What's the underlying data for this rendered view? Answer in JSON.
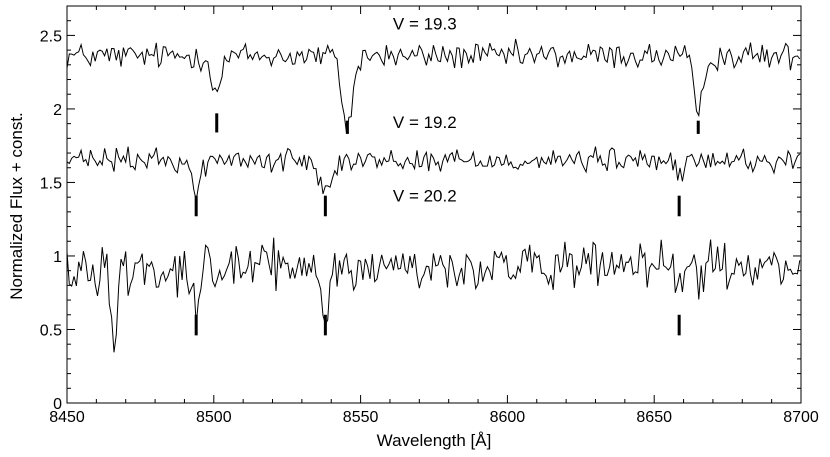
{
  "chart_data": {
    "type": "line",
    "title": "",
    "xlabel": "Wavelength [Å]",
    "ylabel": "Normalized Flux + const.",
    "xlim": [
      8450,
      8700
    ],
    "ylim": [
      0,
      2.7
    ],
    "xticks": [
      8450,
      8500,
      8550,
      8600,
      8650,
      8700
    ],
    "xtick_labels": [
      "8450",
      "8500",
      "8550",
      "8600",
      "8650",
      "8700"
    ],
    "yticks": [
      0,
      0.5,
      1,
      1.5,
      2,
      2.5
    ],
    "ytick_labels": [
      "0",
      "0.5",
      "1",
      "1.5",
      "2",
      "2.5"
    ],
    "grid": false,
    "legend": "none",
    "line_color": "#000000",
    "series": [
      {
        "label": "V = 19.3",
        "baseline": 2.36,
        "noise": 0.045,
        "label_x": 8561,
        "label_y": 2.54,
        "absorption_lines": [
          {
            "center": 8501,
            "depth": 0.24,
            "width": 1.6
          },
          {
            "center": 8545.5,
            "depth": 0.48,
            "width": 1.8
          },
          {
            "center": 8665,
            "depth": 0.4,
            "width": 1.6
          }
        ],
        "line_markers": [
          {
            "x": 8501,
            "y_top": 1.97,
            "y_bottom": 1.84
          },
          {
            "x": 8545.5,
            "y_top": 1.92,
            "y_bottom": 1.83
          },
          {
            "x": 8665,
            "y_top": 1.92,
            "y_bottom": 1.83
          }
        ]
      },
      {
        "label": "V = 19.2",
        "baseline": 1.65,
        "noise": 0.04,
        "label_x": 8561,
        "label_y": 1.87,
        "absorption_lines": [
          {
            "center": 8494,
            "depth": 0.22,
            "width": 1.5
          },
          {
            "center": 8538,
            "depth": 0.2,
            "width": 1.6
          },
          {
            "center": 8658.5,
            "depth": 0.12,
            "width": 1.5
          }
        ],
        "line_markers": [
          {
            "x": 8494,
            "y_top": 1.41,
            "y_bottom": 1.27
          },
          {
            "x": 8538,
            "y_top": 1.41,
            "y_bottom": 1.27
          },
          {
            "x": 8658.5,
            "y_top": 1.41,
            "y_bottom": 1.27
          }
        ]
      },
      {
        "label": "V = 20.2",
        "baseline": 0.92,
        "noise": 0.08,
        "label_x": 8561,
        "label_y": 1.37,
        "absorption_lines": [
          {
            "center": 8466,
            "depth": 0.5,
            "width": 1.0
          },
          {
            "center": 8494,
            "depth": 0.25,
            "width": 1.2
          },
          {
            "center": 8538,
            "depth": 0.3,
            "width": 1.2
          },
          {
            "center": 8658.5,
            "depth": 0.15,
            "width": 1.2
          }
        ],
        "line_markers": [
          {
            "x": 8494,
            "y_top": 0.6,
            "y_bottom": 0.46
          },
          {
            "x": 8538,
            "y_top": 0.6,
            "y_bottom": 0.46
          },
          {
            "x": 8658.5,
            "y_top": 0.6,
            "y_bottom": 0.46
          }
        ]
      }
    ]
  }
}
